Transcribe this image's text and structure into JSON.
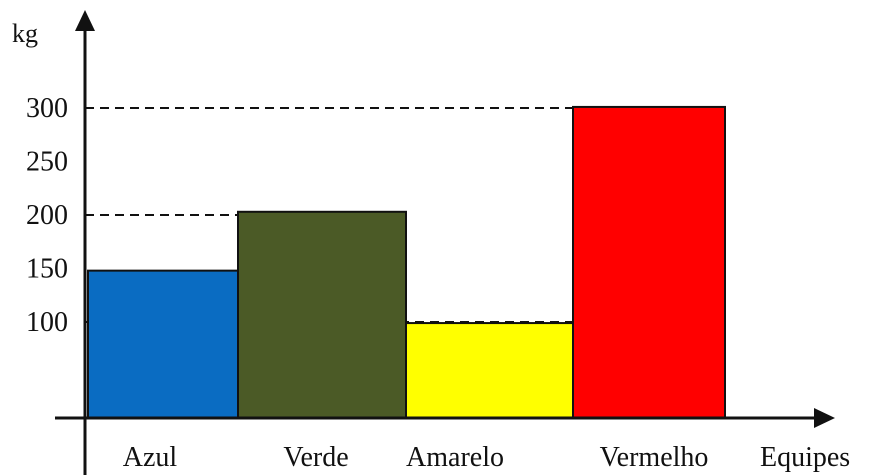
{
  "chart_data": {
    "type": "bar",
    "title": "",
    "xlabel": "Equipes",
    "ylabel": "kg",
    "categories": [
      "Azul",
      "Verde",
      "Amarelo",
      "Vermelho"
    ],
    "values": [
      148,
      203,
      99,
      301
    ],
    "colors": [
      "#0a6cc2",
      "#4b5a26",
      "#ffff00",
      "#ff0000"
    ],
    "yticks": [
      100,
      150,
      200,
      250,
      300
    ],
    "dashed_levels": [
      100,
      200,
      300
    ],
    "ylim": [
      0,
      360
    ],
    "grid": false,
    "legend": "none",
    "bars_adjacent": true
  }
}
